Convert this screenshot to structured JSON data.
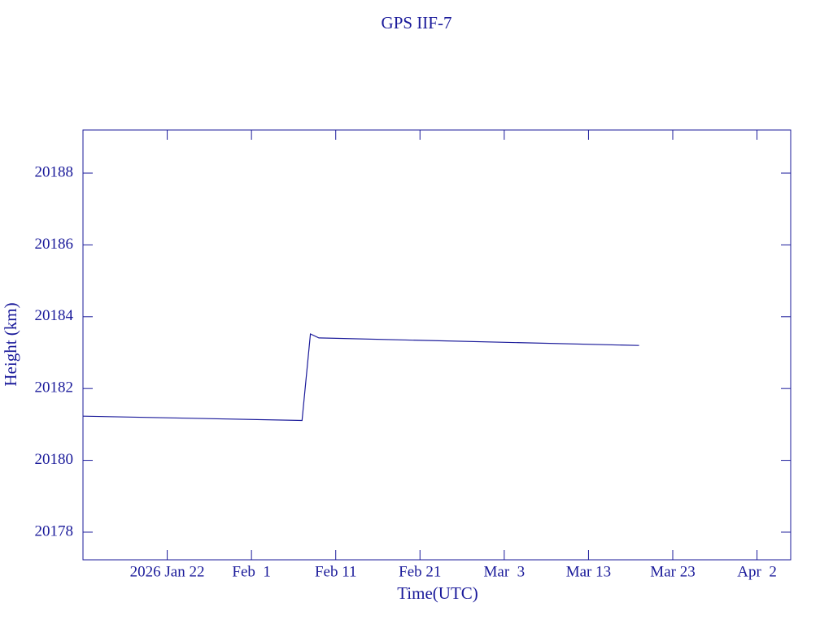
{
  "chart_data": {
    "type": "line",
    "title": "GPS IIF-7",
    "x_label": "Time(UTC)",
    "y_label": "Height (km)",
    "x": [
      "2026-01-12",
      "2026-02-07",
      "2026-02-08",
      "2026-02-09",
      "2026-03-19"
    ],
    "series": [
      {
        "color": "#1a1a9a",
        "values": [
          20181.23,
          20181.11,
          20183.52,
          20183.41,
          20183.2
        ]
      }
    ],
    "xlim": [
      "2026-01-12",
      "2026-04-06"
    ],
    "xticks": [
      {
        "value": "2026-01-22",
        "label": "2026 Jan 22"
      },
      {
        "value": "2026-02-01",
        "label": "Feb  1"
      },
      {
        "value": "2026-02-11",
        "label": "Feb 11"
      },
      {
        "value": "2026-02-21",
        "label": "Feb 21"
      },
      {
        "value": "2026-03-03",
        "label": "Mar  3"
      },
      {
        "value": "2026-03-13",
        "label": "Mar 13"
      },
      {
        "value": "2026-03-23",
        "label": "Mar 23"
      },
      {
        "value": "2026-04-02",
        "label": "Apr  2"
      }
    ],
    "ylim": [
      20177.23,
      20189.2
    ],
    "yticks": [
      20178,
      20180,
      20182,
      20184,
      20186,
      20188
    ]
  }
}
